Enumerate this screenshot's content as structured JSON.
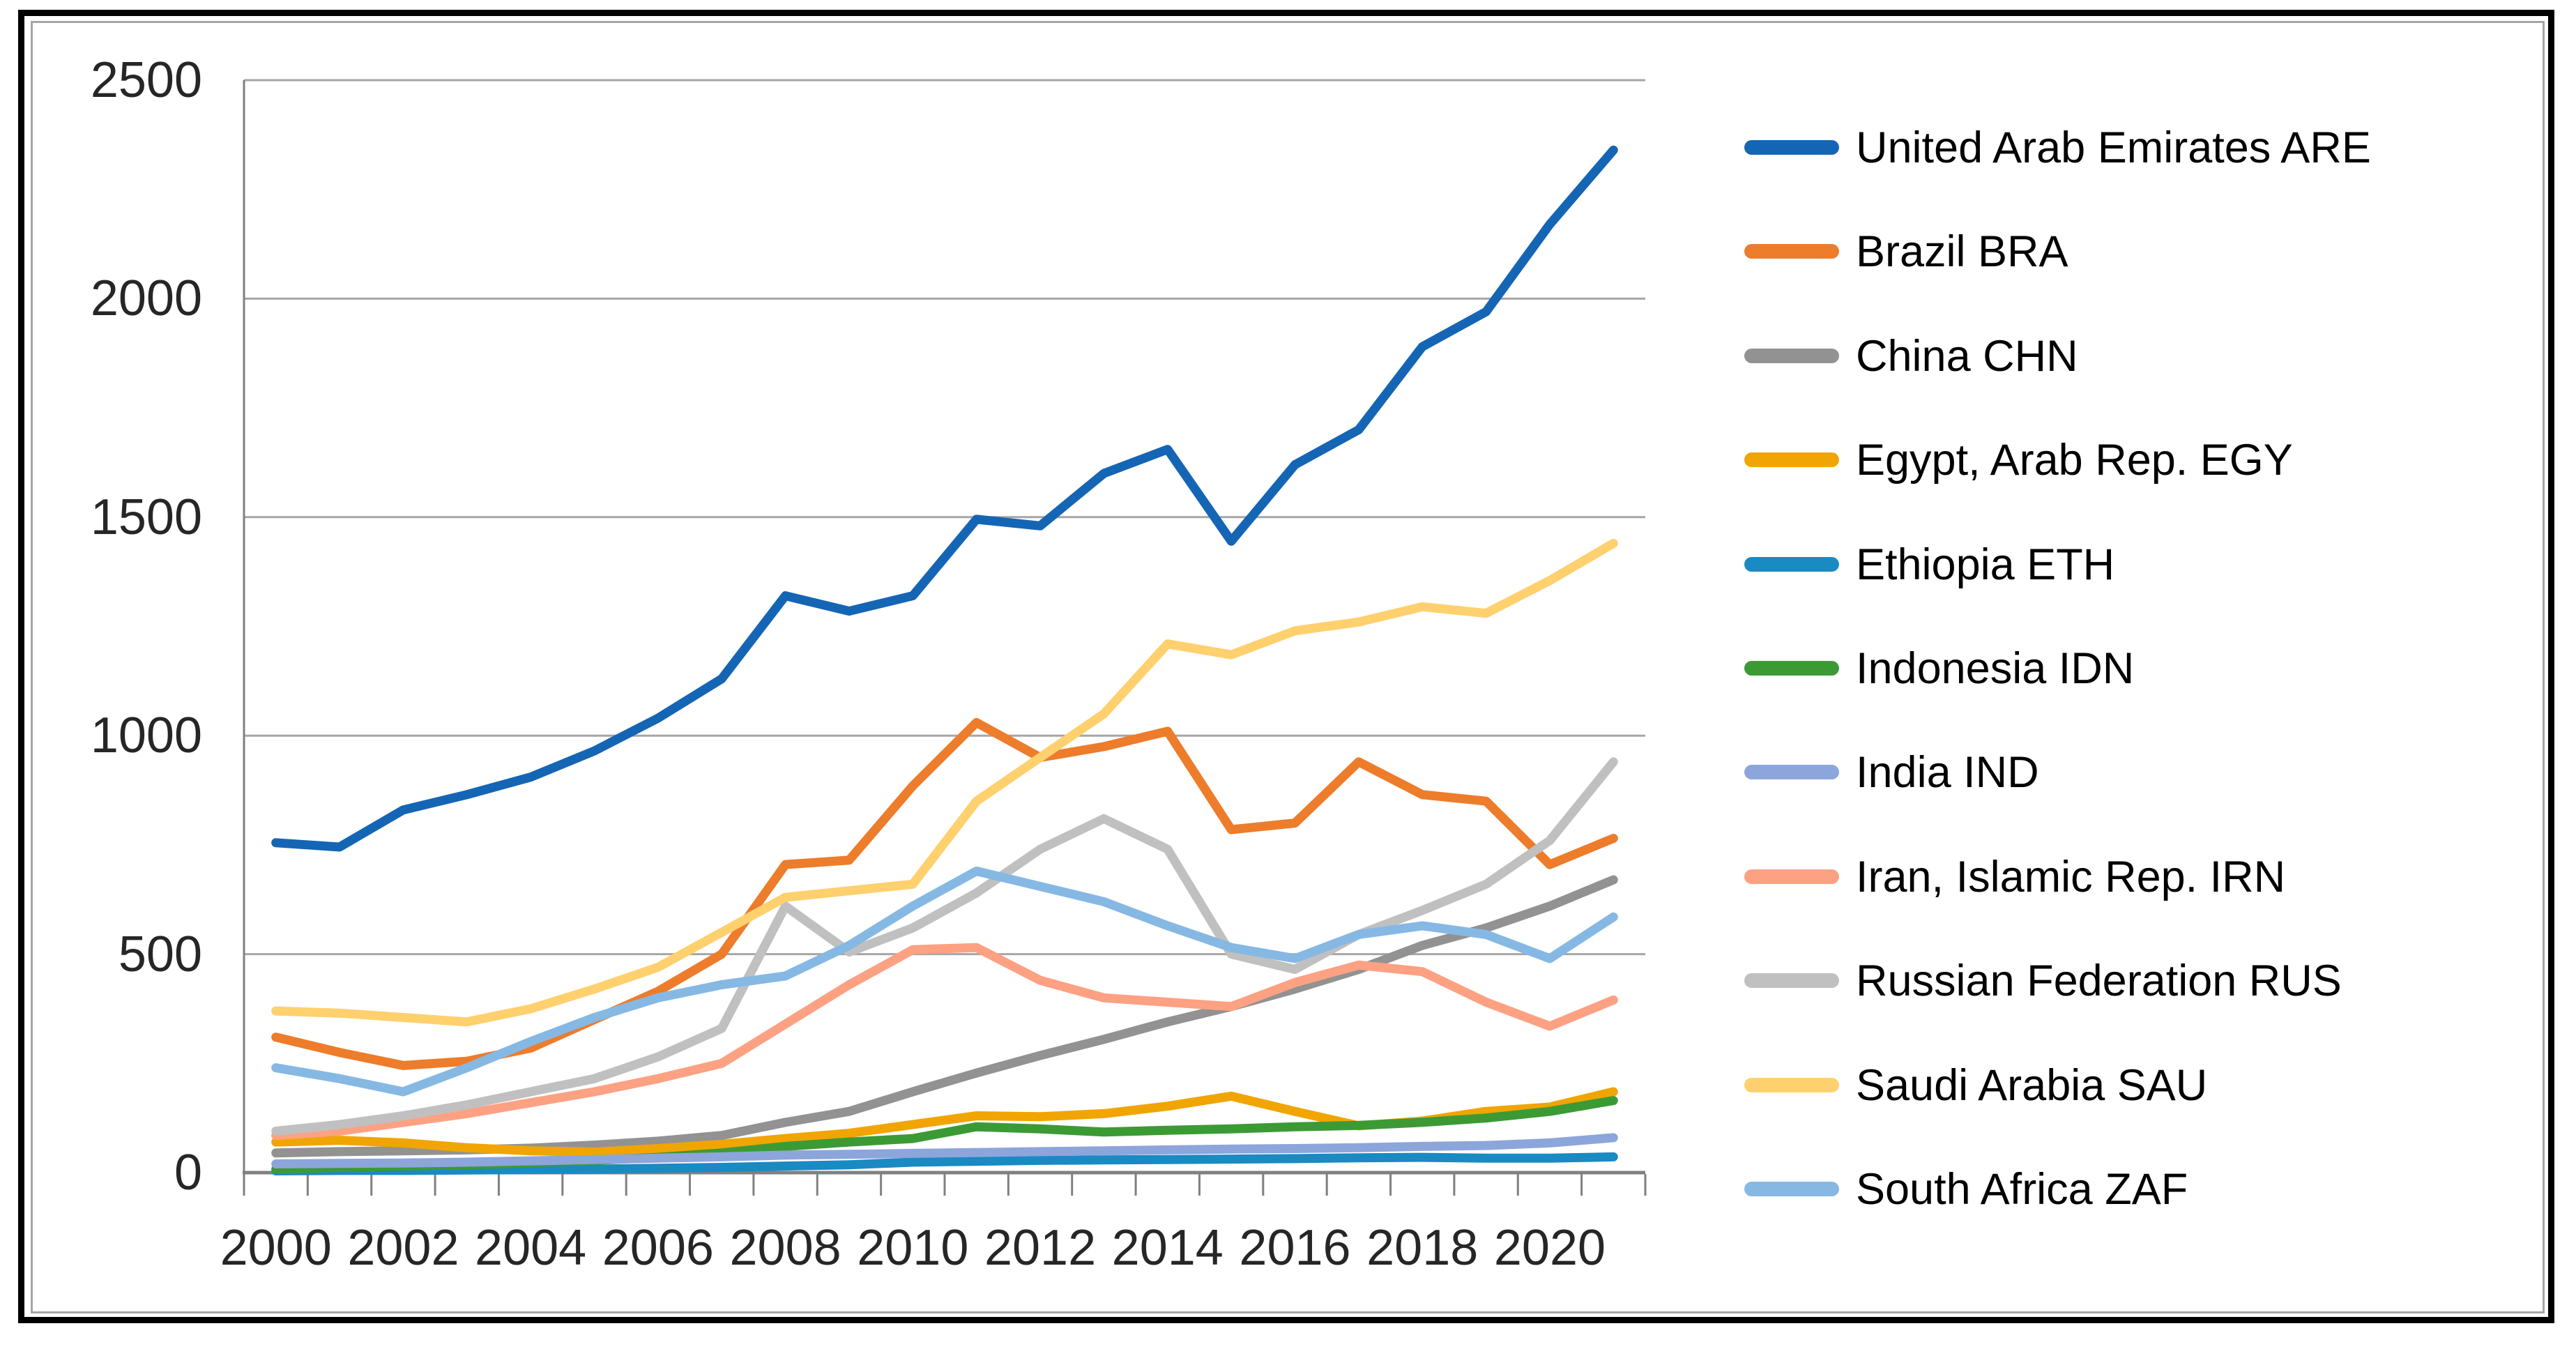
{
  "window": {
    "outer_border_color": "#000000",
    "inner_border_color": "#A6A6A6",
    "background": "#ffffff"
  },
  "chart_data": {
    "type": "line",
    "title": "",
    "xlabel": "",
    "ylabel": "",
    "grid": true,
    "gridline_color": "#A6A6A6",
    "axis_color": "#808080",
    "tick_label_color": "#262626",
    "legend_position": "right",
    "ylim": [
      0,
      2500
    ],
    "x": [
      2000,
      2001,
      2002,
      2003,
      2004,
      2005,
      2006,
      2007,
      2008,
      2009,
      2010,
      2011,
      2012,
      2013,
      2014,
      2015,
      2016,
      2017,
      2018,
      2019,
      2020,
      2021
    ],
    "x_tick_labels": [
      {
        "label": "2000",
        "index": 0
      },
      {
        "label": "2002",
        "index": 2
      },
      {
        "label": "2004",
        "index": 4
      },
      {
        "label": "2006",
        "index": 6
      },
      {
        "label": "2008",
        "index": 8
      },
      {
        "label": "2010",
        "index": 10
      },
      {
        "label": "2012",
        "index": 12
      },
      {
        "label": "2014",
        "index": 14
      },
      {
        "label": "2016",
        "index": 16
      },
      {
        "label": "2018",
        "index": 18
      },
      {
        "label": "2020",
        "index": 20
      }
    ],
    "y_ticks": [
      {
        "label": "0",
        "value": 0
      },
      {
        "label": "500",
        "value": 500
      },
      {
        "label": "1000",
        "value": 1000
      },
      {
        "label": "1500",
        "value": 1500
      },
      {
        "label": "2000",
        "value": 2000
      },
      {
        "label": "2500",
        "value": 2500
      }
    ],
    "series": [
      {
        "name": "United Arab Emirates",
        "code": "ARE",
        "legend_label": "United Arab Emirates ARE",
        "color": "#1565B5",
        "values": [
          755,
          745,
          830,
          865,
          905,
          965,
          1040,
          1130,
          1320,
          1285,
          1320,
          1495,
          1480,
          1600,
          1655,
          1445,
          1620,
          1700,
          1890,
          1970,
          2170,
          2340
        ]
      },
      {
        "name": "Brazil",
        "code": "BRA",
        "legend_label": "Brazil BRA",
        "color": "#ED7C2B",
        "values": [
          310,
          275,
          245,
          255,
          285,
          350,
          415,
          500,
          705,
          715,
          885,
          1030,
          950,
          975,
          1010,
          785,
          800,
          940,
          865,
          850,
          705,
          765
        ]
      },
      {
        "name": "China",
        "code": "CHN",
        "legend_label": "China CHN",
        "color": "#929292",
        "values": [
          45,
          48,
          50,
          52,
          56,
          63,
          72,
          85,
          115,
          140,
          185,
          228,
          268,
          305,
          345,
          380,
          420,
          465,
          520,
          560,
          610,
          670
        ]
      },
      {
        "name": "Egypt, Arab Rep.",
        "code": "EGY",
        "legend_label": "Egypt, Arab Rep. EGY",
        "color": "#F0A502",
        "values": [
          70,
          74,
          68,
          57,
          50,
          47,
          55,
          65,
          78,
          90,
          110,
          130,
          128,
          135,
          152,
          175,
          140,
          107,
          118,
          140,
          150,
          185
        ]
      },
      {
        "name": "Ethiopia",
        "code": "ETH",
        "legend_label": "Ethiopia ETH",
        "color": "#1A8AC2",
        "values": [
          4,
          5,
          5,
          6,
          7,
          8,
          10,
          12,
          15,
          18,
          24,
          26,
          28,
          29,
          30,
          31,
          32,
          34,
          35,
          33,
          33,
          36
        ]
      },
      {
        "name": "Indonesia",
        "code": "IDN",
        "legend_label": "Indonesia IDN",
        "color": "#3C9A35",
        "values": [
          8,
          12,
          15,
          18,
          22,
          28,
          35,
          45,
          60,
          70,
          78,
          105,
          100,
          93,
          97,
          100,
          105,
          108,
          115,
          125,
          140,
          165
        ]
      },
      {
        "name": "India",
        "code": "IND",
        "legend_label": "India IND",
        "color": "#8CA5DB",
        "values": [
          20,
          21,
          22,
          24,
          27,
          30,
          33,
          36,
          40,
          42,
          44,
          46,
          48,
          50,
          52,
          54,
          55,
          57,
          60,
          62,
          68,
          80
        ]
      },
      {
        "name": "Iran, Islamic Rep.",
        "code": "IRN",
        "legend_label": "Iran, Islamic Rep. IRN",
        "color": "#FDA183",
        "values": [
          85,
          95,
          115,
          135,
          160,
          185,
          215,
          250,
          340,
          430,
          510,
          515,
          440,
          400,
          390,
          380,
          435,
          475,
          460,
          390,
          335,
          395
        ]
      },
      {
        "name": "Russian Federation",
        "code": "RUS",
        "legend_label": "Russian Federation RUS",
        "color": "#C0C0C1",
        "values": [
          95,
          110,
          130,
          155,
          185,
          215,
          265,
          330,
          610,
          505,
          560,
          640,
          740,
          810,
          740,
          500,
          465,
          545,
          600,
          660,
          760,
          940
        ]
      },
      {
        "name": "Saudi Arabia",
        "code": "SAU",
        "legend_label": "Saudi Arabia SAU",
        "color": "#FFD06E",
        "values": [
          370,
          365,
          355,
          345,
          375,
          420,
          470,
          550,
          630,
          645,
          660,
          850,
          950,
          1050,
          1210,
          1185,
          1240,
          1260,
          1295,
          1280,
          1355,
          1440
        ]
      },
      {
        "name": "South Africa",
        "code": "ZAF",
        "legend_label": "South Africa ZAF",
        "color": "#86B8E4",
        "values": [
          240,
          215,
          185,
          240,
          300,
          355,
          400,
          430,
          450,
          520,
          610,
          690,
          655,
          620,
          565,
          515,
          490,
          545,
          565,
          545,
          490,
          585
        ]
      }
    ]
  }
}
